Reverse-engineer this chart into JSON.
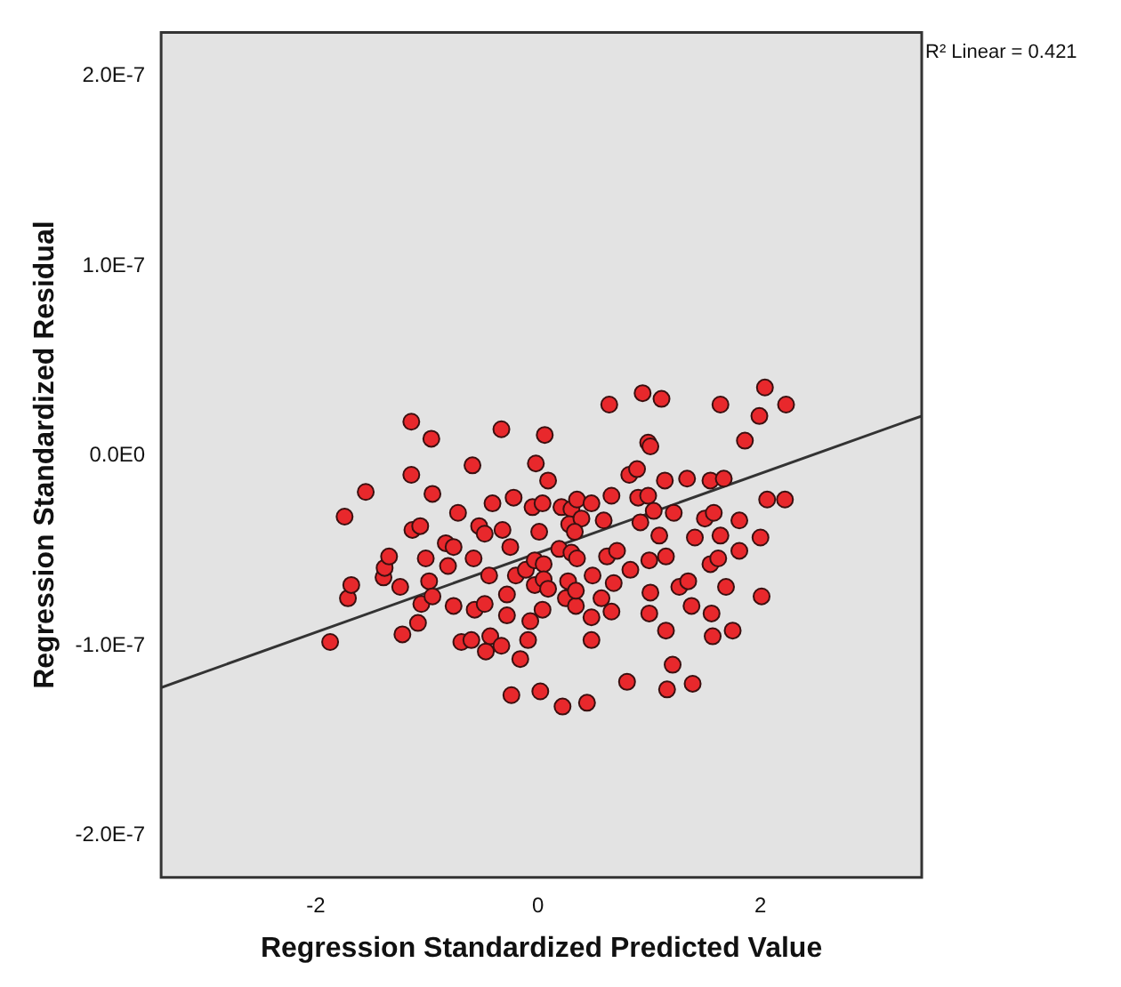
{
  "chart_data": {
    "type": "scatter",
    "xlabel": "Regression Standardized Predicted Value",
    "ylabel": "Regression Standardized Residual",
    "annotations": [
      "R² Linear = 0.421"
    ],
    "xlim": [
      -3.39,
      3.45
    ],
    "xticks": [
      -2,
      0,
      2
    ],
    "ylim": [
      -2.22e-07,
      2.23e-07
    ],
    "yticks": [
      {
        "value": -2e-07,
        "label": "-2.0E-7"
      },
      {
        "value": -1e-07,
        "label": "-1.0E-7"
      },
      {
        "value": 0,
        "label": "0.0E0"
      },
      {
        "value": 1e-07,
        "label": "1.0E-7"
      },
      {
        "value": 2e-07,
        "label": "2.0E-7"
      }
    ],
    "grid": false,
    "legend": false,
    "x": [
      -1.87,
      -1.74,
      -1.71,
      -1.68,
      -1.55,
      -1.39,
      -1.38,
      -1.34,
      -1.24,
      -1.22,
      -1.14,
      -1.14,
      -1.13,
      -1.06,
      -1.08,
      -1.05,
      -1.01,
      -0.98,
      -0.96,
      -0.95,
      -0.95,
      -0.83,
      -0.81,
      -0.76,
      -0.76,
      -0.72,
      -0.69,
      -0.6,
      -0.59,
      -0.58,
      -0.57,
      -0.53,
      -0.48,
      -0.48,
      -0.47,
      -0.44,
      -0.43,
      -0.41,
      -0.33,
      -0.33,
      -0.32,
      -0.28,
      -0.28,
      -0.25,
      -0.24,
      -0.22,
      -0.2,
      -0.16,
      -0.11,
      -0.09,
      -0.07,
      -0.05,
      -0.02,
      -0.03,
      -0.03,
      0.01,
      0.02,
      0.04,
      0.04,
      0.05,
      0.05,
      0.06,
      0.09,
      0.09,
      0.19,
      0.21,
      0.22,
      0.25,
      0.27,
      0.3,
      0.28,
      0.3,
      0.34,
      0.34,
      0.35,
      0.35,
      0.39,
      0.33,
      0.44,
      0.48,
      0.48,
      0.48,
      0.49,
      0.57,
      0.59,
      0.62,
      0.64,
      0.66,
      0.66,
      0.68,
      0.71,
      0.8,
      0.82,
      0.83,
      0.89,
      0.9,
      0.92,
      0.94,
      0.99,
      1.01,
      0.99,
      1.0,
      1.01,
      1.0,
      1.04,
      1.09,
      1.11,
      1.14,
      1.15,
      1.15,
      1.16,
      1.21,
      1.22,
      1.27,
      1.35,
      1.34,
      1.38,
      1.39,
      1.41,
      1.5,
      1.55,
      1.56,
      1.57,
      1.55,
      1.58,
      1.62,
      1.64,
      1.64,
      1.67,
      1.69,
      1.75,
      1.81,
      1.81,
      1.86,
      1.99,
      2.0,
      2.01,
      2.04,
      2.06,
      2.22,
      2.23
    ],
    "series": [
      {
        "marker": "circle",
        "color": "#e8282c",
        "values": [
          -9.8e-08,
          -3.2e-08,
          -7.5e-08,
          -6.8e-08,
          -1.9e-08,
          -6.4e-08,
          -5.9e-08,
          -5.3e-08,
          -6.9e-08,
          -9.4e-08,
          1.8e-08,
          -1e-08,
          -3.9e-08,
          -3.7e-08,
          -8.8e-08,
          -7.8e-08,
          -5.4e-08,
          -6.6e-08,
          9e-09,
          -2e-08,
          -7.4e-08,
          -4.6e-08,
          -5.8e-08,
          -4.8e-08,
          -7.9e-08,
          -3e-08,
          -9.8e-08,
          -9.7e-08,
          -5e-09,
          -5.4e-08,
          -8.1e-08,
          -3.7e-08,
          -4.1e-08,
          -7.8e-08,
          -1.03e-07,
          -6.3e-08,
          -9.5e-08,
          -2.5e-08,
          -1e-07,
          1.4e-08,
          -3.9e-08,
          -7.3e-08,
          -8.4e-08,
          -4.8e-08,
          -1.26e-07,
          -2.2e-08,
          -6.3e-08,
          -1.07e-07,
          -6e-08,
          -9.7e-08,
          -8.7e-08,
          -2.7e-08,
          -4e-09,
          -5.5e-08,
          -6.8e-08,
          -4e-08,
          -1.24e-07,
          -2.5e-08,
          -8.1e-08,
          -5.7e-08,
          -6.5e-08,
          1.1e-08,
          -1.3e-08,
          -7e-08,
          -4.9e-08,
          -2.7e-08,
          -1.32e-07,
          -7.5e-08,
          -6.6e-08,
          -2.8e-08,
          -3.6e-08,
          -5.1e-08,
          -7.9e-08,
          -7.1e-08,
          -2.3e-08,
          -5.4e-08,
          -3.3e-08,
          -4e-08,
          -1.3e-07,
          -2.5e-08,
          -8.5e-08,
          -9.7e-08,
          -6.3e-08,
          -7.5e-08,
          -3.4e-08,
          -5.3e-08,
          2.7e-08,
          -2.1e-08,
          -8.2e-08,
          -6.7e-08,
          -5e-08,
          -1.19e-07,
          -1e-08,
          -6e-08,
          -7e-09,
          -2.2e-08,
          -3.5e-08,
          3.3e-08,
          7e-09,
          5e-09,
          -2.1e-08,
          -5.5e-08,
          -7.2e-08,
          -8.3e-08,
          -2.9e-08,
          -4.2e-08,
          3e-08,
          -1.3e-08,
          -5.3e-08,
          -9.2e-08,
          -1.23e-07,
          -1.1e-07,
          -3e-08,
          -6.9e-08,
          -6.6e-08,
          -1.2e-08,
          -7.9e-08,
          -1.2e-07,
          -4.3e-08,
          -3.3e-08,
          -5.7e-08,
          -8.3e-08,
          -9.5e-08,
          -1.3e-08,
          -3e-08,
          -5.4e-08,
          2.7e-08,
          -4.2e-08,
          -1.2e-08,
          -6.9e-08,
          -9.2e-08,
          -3.4e-08,
          -5e-08,
          8e-09,
          2.1e-08,
          -4.3e-08,
          -7.4e-08,
          3.6e-08,
          -2.3e-08,
          -2.3e-08,
          2.7e-08
        ]
      },
      {
        "type": "line",
        "color": "#333333",
        "x": [
          -3.39,
          3.45
        ],
        "values": [
          -1.22e-07,
          2.1e-08
        ]
      }
    ]
  }
}
